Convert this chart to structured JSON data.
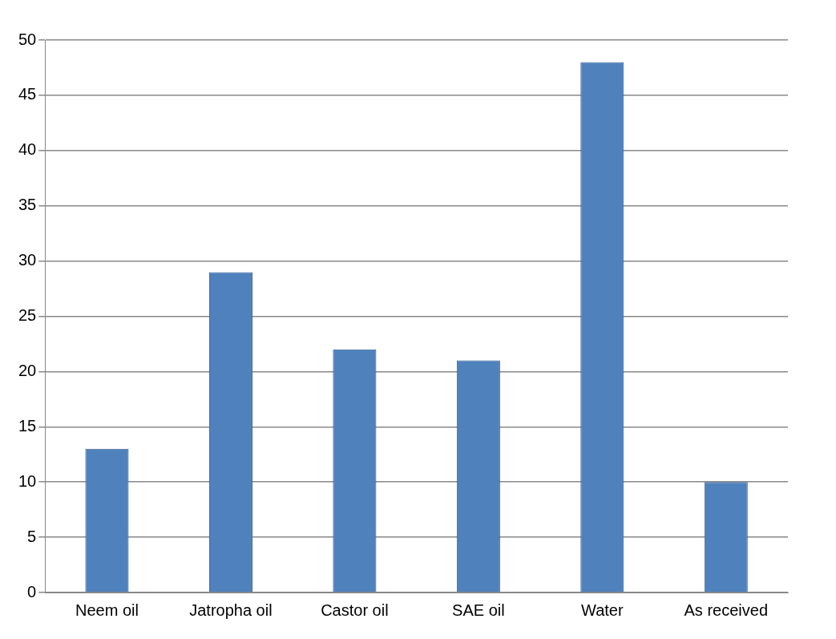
{
  "chart_data": {
    "type": "bar",
    "categories": [
      "Neem oil",
      "Jatropha oil",
      "Castor oil",
      "SAE oil",
      "Water",
      "As received"
    ],
    "values": [
      13,
      29,
      22,
      21,
      48,
      10
    ],
    "color": "#4f81bd",
    "ylim": [
      0,
      50
    ],
    "yticks": [
      0,
      5,
      10,
      15,
      20,
      25,
      30,
      35,
      40,
      45,
      50
    ],
    "grid": "y",
    "legend": false
  }
}
